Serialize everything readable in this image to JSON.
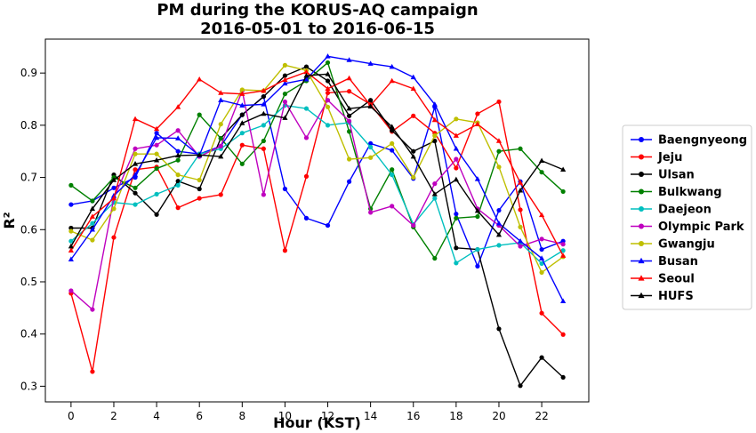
{
  "chart_data": {
    "type": "line",
    "title_lines": [
      "PM during the KORUS-AQ campaign",
      "2016-05-01 to 2016-06-15"
    ],
    "xlabel": "Hour (KST)",
    "ylabel": "R²",
    "xlim": [
      -1.2,
      24.2
    ],
    "ylim": [
      0.27,
      0.965
    ],
    "xticks": [
      0,
      2,
      4,
      6,
      8,
      10,
      12,
      14,
      16,
      18,
      20,
      22
    ],
    "yticks": [
      0.3,
      0.4,
      0.5,
      0.6,
      0.7,
      0.8,
      0.9
    ],
    "grid": false,
    "legend_position": "right",
    "x": [
      0,
      1,
      2,
      3,
      4,
      5,
      6,
      7,
      8,
      9,
      10,
      11,
      12,
      13,
      14,
      15,
      16,
      17,
      18,
      19,
      20,
      21,
      22,
      23
    ],
    "series": [
      {
        "name": "Baengnyeong",
        "color": "#0000ff",
        "marker": "circle",
        "values": [
          0.648,
          0.655,
          0.68,
          0.7,
          0.785,
          0.75,
          0.745,
          0.76,
          0.82,
          0.855,
          0.678,
          0.622,
          0.608,
          0.692,
          0.765,
          0.752,
          0.698,
          0.835,
          0.63,
          0.53,
          0.637,
          0.692,
          0.562,
          0.578
        ]
      },
      {
        "name": "Jeju",
        "color": "#ff0000",
        "marker": "circle",
        "values": [
          0.478,
          0.328,
          0.585,
          0.715,
          0.72,
          0.642,
          0.66,
          0.667,
          0.762,
          0.755,
          0.56,
          0.702,
          0.862,
          0.865,
          0.84,
          0.788,
          0.818,
          0.785,
          0.718,
          0.822,
          0.845,
          0.638,
          0.44,
          0.399
        ]
      },
      {
        "name": "Ulsan",
        "color": "#000000",
        "marker": "circle",
        "values": [
          0.603,
          0.603,
          0.705,
          0.67,
          0.629,
          0.693,
          0.678,
          0.775,
          0.82,
          0.855,
          0.895,
          0.912,
          0.885,
          0.818,
          0.848,
          0.79,
          0.75,
          0.77,
          0.565,
          0.562,
          0.41,
          0.301,
          0.355,
          0.317
        ]
      },
      {
        "name": "Bulkwang",
        "color": "#008000",
        "marker": "circle",
        "values": [
          0.685,
          0.655,
          0.7,
          0.68,
          0.717,
          0.733,
          0.82,
          0.775,
          0.726,
          0.77,
          0.86,
          0.885,
          0.92,
          0.788,
          0.64,
          0.715,
          0.605,
          0.545,
          0.622,
          0.625,
          0.75,
          0.755,
          0.71,
          0.673
        ]
      },
      {
        "name": "Daejeon",
        "color": "#00bfbf",
        "marker": "circle",
        "values": [
          0.578,
          0.612,
          0.652,
          0.648,
          0.668,
          0.685,
          0.745,
          0.755,
          0.785,
          0.8,
          0.838,
          0.832,
          0.8,
          0.805,
          0.758,
          0.705,
          0.61,
          0.66,
          0.536,
          0.562,
          0.57,
          0.575,
          0.535,
          0.56
        ]
      },
      {
        "name": "Olympic Park",
        "color": "#bf00bf",
        "marker": "circle",
        "values": [
          0.483,
          0.447,
          0.66,
          0.755,
          0.762,
          0.79,
          0.74,
          0.76,
          0.866,
          0.667,
          0.845,
          0.776,
          0.848,
          0.808,
          0.633,
          0.645,
          0.608,
          0.688,
          0.735,
          0.64,
          0.608,
          0.568,
          0.582,
          0.572
        ]
      },
      {
        "name": "Gwangju",
        "color": "#bfbf00",
        "marker": "circle",
        "values": [
          0.597,
          0.58,
          0.64,
          0.745,
          0.745,
          0.705,
          0.695,
          0.802,
          0.868,
          0.866,
          0.915,
          0.905,
          0.835,
          0.735,
          0.738,
          0.765,
          0.7,
          0.78,
          0.812,
          0.805,
          0.72,
          0.605,
          0.518,
          0.548
        ]
      },
      {
        "name": "Busan",
        "color": "#0000ff",
        "marker": "triangle",
        "values": [
          0.543,
          0.6,
          0.665,
          0.705,
          0.776,
          0.775,
          0.742,
          0.848,
          0.838,
          0.84,
          0.88,
          0.888,
          0.932,
          0.925,
          0.918,
          0.912,
          0.892,
          0.84,
          0.755,
          0.697,
          0.612,
          0.578,
          0.545,
          0.463
        ]
      },
      {
        "name": "Seoul",
        "color": "#ff0000",
        "marker": "triangle",
        "values": [
          0.56,
          0.625,
          0.66,
          0.812,
          0.793,
          0.835,
          0.888,
          0.862,
          0.86,
          0.866,
          0.887,
          0.902,
          0.87,
          0.89,
          0.838,
          0.885,
          0.87,
          0.81,
          0.78,
          0.802,
          0.77,
          0.69,
          0.628,
          0.55
        ]
      },
      {
        "name": "HUFS",
        "color": "#000000",
        "marker": "triangle",
        "values": [
          0.568,
          0.64,
          0.695,
          0.726,
          0.733,
          0.742,
          0.743,
          0.74,
          0.804,
          0.822,
          0.814,
          0.895,
          0.898,
          0.832,
          0.836,
          0.797,
          0.74,
          0.668,
          0.696,
          0.636,
          0.59,
          0.675,
          0.732,
          0.715
        ]
      }
    ]
  }
}
